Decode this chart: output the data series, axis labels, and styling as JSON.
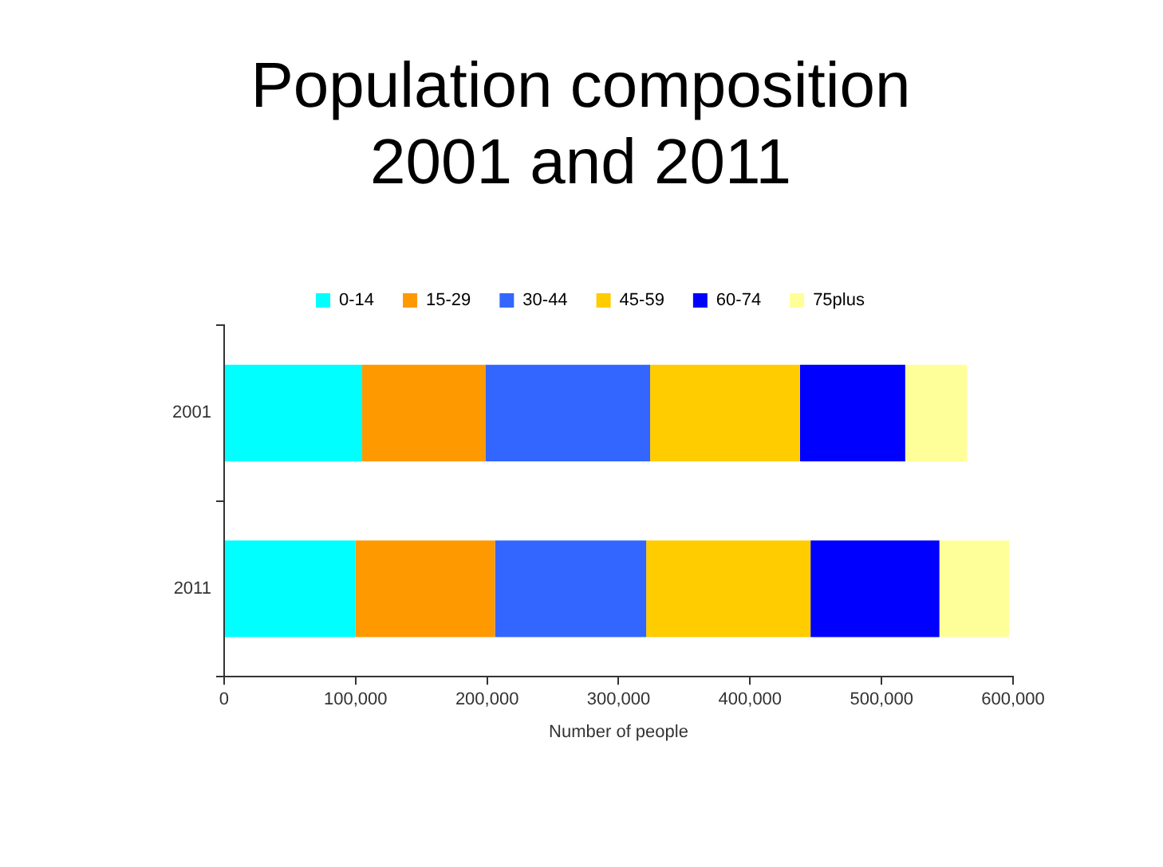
{
  "chart_data": {
    "type": "bar",
    "title": "Population composition 2001 and 2011",
    "orientation": "horizontal",
    "stacked": true,
    "categories": [
      "2001",
      "2011"
    ],
    "series": [
      {
        "name": "0-14",
        "color": "#00ffff",
        "values": [
          105000,
          100000
        ]
      },
      {
        "name": "15-29",
        "color": "#ff9900",
        "values": [
          94000,
          106000
        ]
      },
      {
        "name": "30-44",
        "color": "#3366ff",
        "values": [
          125000,
          115000
        ]
      },
      {
        "name": "45-59",
        "color": "#ffcc00",
        "values": [
          114000,
          125000
        ]
      },
      {
        "name": "60-74",
        "color": "#0000ff",
        "values": [
          80000,
          98000
        ]
      },
      {
        "name": "75plus",
        "color": "#ffff99",
        "values": [
          47000,
          53000
        ]
      }
    ],
    "xlim": [
      0,
      600000
    ],
    "xticks": [
      {
        "value": 0,
        "label": "0"
      },
      {
        "value": 100000,
        "label": "100,000"
      },
      {
        "value": 200000,
        "label": "200,000"
      },
      {
        "value": 300000,
        "label": "300,000"
      },
      {
        "value": 400000,
        "label": "400,000"
      },
      {
        "value": 500000,
        "label": "500,000"
      },
      {
        "value": 600000,
        "label": "600,000"
      }
    ],
    "xlabel": "Number of people",
    "legend": "top",
    "grid": false
  }
}
